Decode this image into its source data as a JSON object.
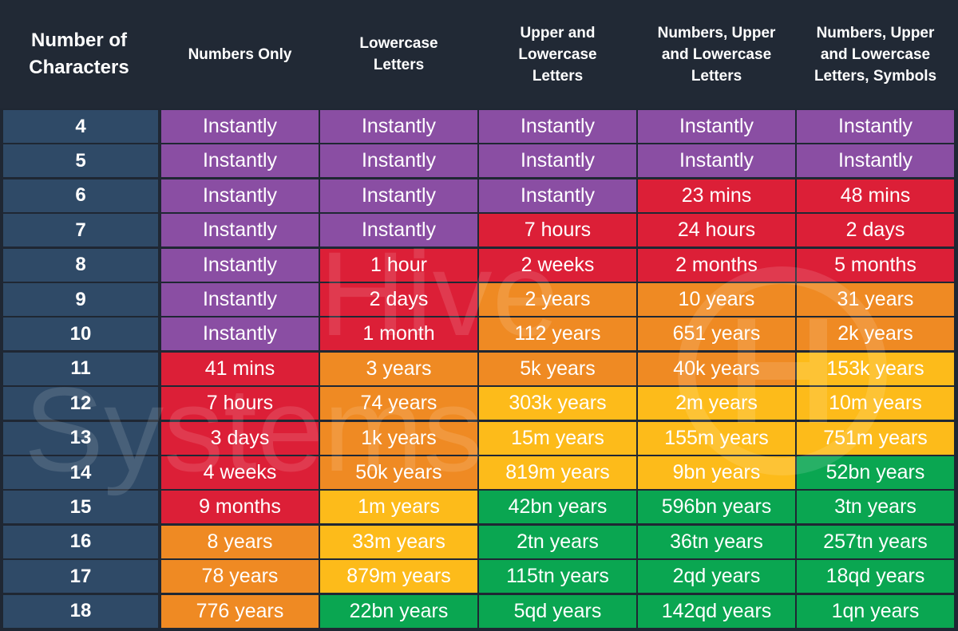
{
  "chart_data": {
    "type": "table",
    "row_header": "Number of\nCharacters",
    "columns": [
      "Numbers Only",
      "Lowercase\nLetters",
      "Upper and\nLowercase\nLetters",
      "Numbers, Upper\nand Lowercase\nLetters",
      "Numbers, Upper\nand Lowercase\nLetters, Symbols"
    ],
    "rows": [
      {
        "chars": "4",
        "values": [
          "Instantly",
          "Instantly",
          "Instantly",
          "Instantly",
          "Instantly"
        ],
        "levels": [
          "instant",
          "instant",
          "instant",
          "instant",
          "instant"
        ]
      },
      {
        "chars": "5",
        "values": [
          "Instantly",
          "Instantly",
          "Instantly",
          "Instantly",
          "Instantly"
        ],
        "levels": [
          "instant",
          "instant",
          "instant",
          "instant",
          "instant"
        ]
      },
      {
        "chars": "6",
        "values": [
          "Instantly",
          "Instantly",
          "Instantly",
          "23 mins",
          "48 mins"
        ],
        "levels": [
          "instant",
          "instant",
          "instant",
          "red",
          "red"
        ]
      },
      {
        "chars": "7",
        "values": [
          "Instantly",
          "Instantly",
          "7 hours",
          "24 hours",
          "2 days"
        ],
        "levels": [
          "instant",
          "instant",
          "red",
          "red",
          "red"
        ]
      },
      {
        "chars": "8",
        "values": [
          "Instantly",
          "1 hour",
          "2 weeks",
          "2 months",
          "5 months"
        ],
        "levels": [
          "instant",
          "red",
          "red",
          "red",
          "red"
        ]
      },
      {
        "chars": "9",
        "values": [
          "Instantly",
          "2 days",
          "2 years",
          "10 years",
          "31 years"
        ],
        "levels": [
          "instant",
          "red",
          "orange",
          "orange",
          "orange"
        ]
      },
      {
        "chars": "10",
        "values": [
          "Instantly",
          "1 month",
          "112 years",
          "651 years",
          "2k years"
        ],
        "levels": [
          "instant",
          "red",
          "orange",
          "orange",
          "orange"
        ]
      },
      {
        "chars": "11",
        "values": [
          "41 mins",
          "3 years",
          "5k years",
          "40k years",
          "153k years"
        ],
        "levels": [
          "red",
          "orange",
          "orange",
          "orange",
          "yellow"
        ]
      },
      {
        "chars": "12",
        "values": [
          "7 hours",
          "74 years",
          "303k years",
          "2m years",
          "10m years"
        ],
        "levels": [
          "red",
          "orange",
          "yellow",
          "yellow",
          "yellow"
        ]
      },
      {
        "chars": "13",
        "values": [
          "3 days",
          "1k years",
          "15m years",
          "155m years",
          "751m years"
        ],
        "levels": [
          "red",
          "orange",
          "yellow",
          "yellow",
          "yellow"
        ]
      },
      {
        "chars": "14",
        "values": [
          "4 weeks",
          "50k years",
          "819m years",
          "9bn years",
          "52bn years"
        ],
        "levels": [
          "red",
          "orange",
          "yellow",
          "yellow",
          "green"
        ]
      },
      {
        "chars": "15",
        "values": [
          "9 months",
          "1m years",
          "42bn years",
          "596bn years",
          "3tn years"
        ],
        "levels": [
          "red",
          "yellow",
          "green",
          "green",
          "green"
        ]
      },
      {
        "chars": "16",
        "values": [
          "8 years",
          "33m years",
          "2tn years",
          "36tn years",
          "257tn years"
        ],
        "levels": [
          "orange",
          "yellow",
          "green",
          "green",
          "green"
        ]
      },
      {
        "chars": "17",
        "values": [
          "78 years",
          "879m years",
          "115tn years",
          "2qd years",
          "18qd years"
        ],
        "levels": [
          "orange",
          "yellow",
          "green",
          "green",
          "green"
        ]
      },
      {
        "chars": "18",
        "values": [
          "776 years",
          "22bn years",
          "5qd years",
          "142qd years",
          "1qn years"
        ],
        "levels": [
          "orange",
          "green",
          "green",
          "green",
          "green"
        ]
      }
    ],
    "level_colors": {
      "instant": "#8a4ea3",
      "red": "#dc1f37",
      "orange": "#ef8a23",
      "yellow": "#fdbb1a",
      "green": "#0aa651"
    }
  },
  "colors": {
    "background": "#1f2733",
    "row_label": "#2f4a67",
    "text": "#ffffff"
  },
  "watermark": {
    "text_line1": "Hive",
    "text_line2": "Systems"
  }
}
